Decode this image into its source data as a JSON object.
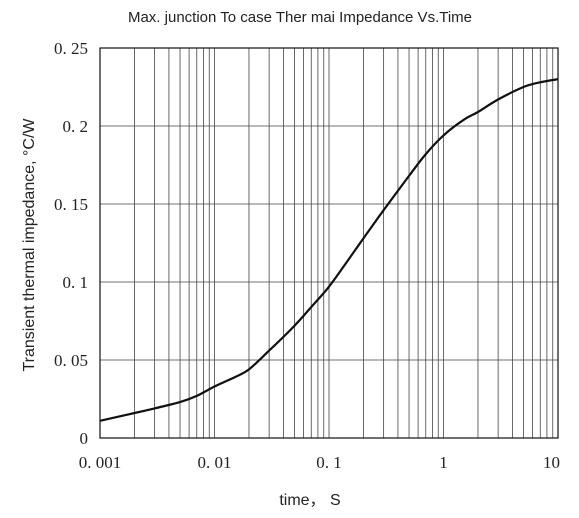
{
  "chart_data": {
    "type": "line",
    "title": "Max. junction To case Ther mai Impedance Vs.Time",
    "xlabel": "time， S",
    "ylabel": "Transient thermal impedance, °C/W",
    "x_scale": "log",
    "xlim": [
      0.001,
      10
    ],
    "ylim": [
      0,
      0.25
    ],
    "x_ticks": [
      {
        "value": 0.001,
        "label": "0. 001"
      },
      {
        "value": 0.01,
        "label": "0. 01"
      },
      {
        "value": 0.1,
        "label": "0. 1"
      },
      {
        "value": 1,
        "label": "1"
      },
      {
        "value": 10,
        "label": "10"
      }
    ],
    "y_ticks": [
      {
        "value": 0,
        "label": "0"
      },
      {
        "value": 0.05,
        "label": "0. 05"
      },
      {
        "value": 0.1,
        "label": "0. 1"
      },
      {
        "value": 0.15,
        "label": "0. 15"
      },
      {
        "value": 0.2,
        "label": "0. 2"
      },
      {
        "value": 0.25,
        "label": "0. 25"
      }
    ],
    "grid": true,
    "line_color": "#111111",
    "series": [
      {
        "x": [
          0.001,
          0.002,
          0.003,
          0.005,
          0.007,
          0.01,
          0.015,
          0.02,
          0.03,
          0.05,
          0.07,
          0.1,
          0.15,
          0.2,
          0.3,
          0.5,
          0.7,
          1,
          1.5,
          2,
          3,
          5,
          7,
          10
        ],
        "y": [
          0.011,
          0.016,
          0.019,
          0.023,
          0.027,
          0.033,
          0.039,
          0.044,
          0.056,
          0.072,
          0.084,
          0.097,
          0.115,
          0.128,
          0.146,
          0.168,
          0.182,
          0.194,
          0.204,
          0.209,
          0.217,
          0.225,
          0.228,
          0.23
        ]
      }
    ]
  }
}
